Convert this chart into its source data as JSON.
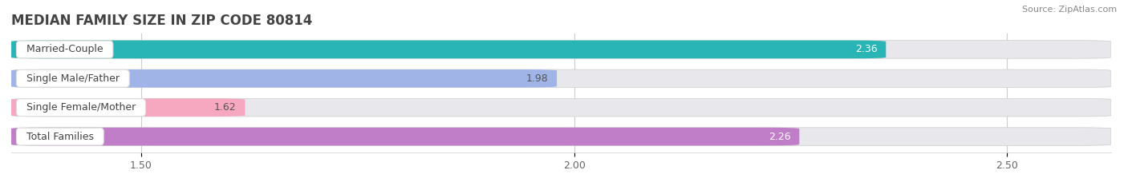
{
  "title": "MEDIAN FAMILY SIZE IN ZIP CODE 80814",
  "source": "Source: ZipAtlas.com",
  "categories": [
    "Married-Couple",
    "Single Male/Father",
    "Single Female/Mother",
    "Total Families"
  ],
  "values": [
    2.36,
    1.98,
    1.62,
    2.26
  ],
  "bar_colors": [
    "#29b5b5",
    "#a0b4e8",
    "#f5a8c0",
    "#c07ec8"
  ],
  "track_color": "#e8e8ec",
  "label_bg_color": "#ffffff",
  "label_border_color": "#dddddd",
  "background_color": "#ffffff",
  "plot_bg_color": "#ffffff",
  "xlim": [
    1.35,
    2.62
  ],
  "xticks": [
    1.5,
    2.0,
    2.5
  ],
  "title_fontsize": 12,
  "source_fontsize": 8,
  "bar_label_fontsize": 9,
  "value_fontsize": 9,
  "tick_fontsize": 9,
  "value_colors": [
    "#ffffff",
    "#555555",
    "#555555",
    "#ffffff"
  ]
}
